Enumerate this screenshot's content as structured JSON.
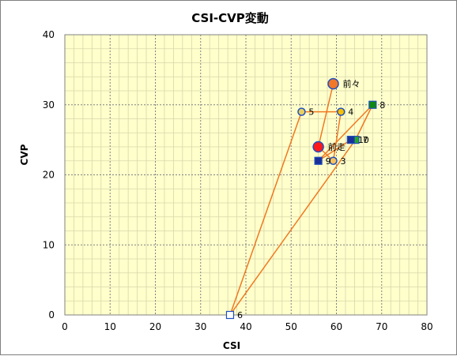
{
  "chart_data": {
    "type": "scatter",
    "title": "CSI-CVP変動",
    "xlabel": "CSI",
    "ylabel": "CVP",
    "xlim": [
      0,
      80
    ],
    "ylim": [
      0,
      40
    ],
    "x_ticks": [
      "0",
      "10",
      "20",
      "30",
      "40",
      "50",
      "60",
      "70",
      "80"
    ],
    "y_ticks": [
      "0",
      "10",
      "20",
      "30",
      "40"
    ],
    "grid": true,
    "colors": {
      "plot_background": "#ffffcc",
      "major_grid": "#808080",
      "minor_grid": "#d6d6aa",
      "connector": "#f07820"
    },
    "points": [
      {
        "label": "前々",
        "x": 59.3,
        "y": 33,
        "marker": "circle",
        "size": "large",
        "fill": "#f07828",
        "stroke": "#1f4fbf"
      },
      {
        "label": "前走",
        "x": 56,
        "y": 24,
        "marker": "circle",
        "size": "large",
        "fill": "#ff1a1a",
        "stroke": "#1f4fbf"
      },
      {
        "label": "3",
        "x": 59.3,
        "y": 22,
        "marker": "circle",
        "size": "small",
        "fill": "#f5c060",
        "stroke": "#1f4fbf"
      },
      {
        "label": "4",
        "x": 61,
        "y": 29,
        "marker": "circle",
        "size": "small",
        "fill": "#f5c000",
        "stroke": "#1f4fbf"
      },
      {
        "label": "5",
        "x": 52.3,
        "y": 29,
        "marker": "circle",
        "size": "small",
        "fill": "#e6d060",
        "stroke": "#1f4fbf"
      },
      {
        "label": "6",
        "x": 36.5,
        "y": 0,
        "marker": "square",
        "size": "small",
        "fill": "#ffffff",
        "stroke": "#1f4fbf"
      },
      {
        "label": "7",
        "x": 64.2,
        "y": 25,
        "marker": "square",
        "size": "small",
        "fill": "#22aa22",
        "stroke": "#1f4fbf"
      },
      {
        "label": "8",
        "x": 68,
        "y": 30,
        "marker": "square",
        "size": "small",
        "fill": "#118811",
        "stroke": "#1f4fbf"
      },
      {
        "label": "9",
        "x": 56,
        "y": 22,
        "marker": "square",
        "size": "small",
        "fill": "#1a2f9a",
        "stroke": "#1f4fbf"
      },
      {
        "label": "10",
        "x": 63.2,
        "y": 25,
        "marker": "square",
        "size": "small",
        "fill": "#1a2f9a",
        "stroke": "#1f4fbf"
      }
    ],
    "path_order": [
      "10",
      "9",
      "8",
      "7",
      "6",
      "5",
      "4",
      "3",
      "前走",
      "前々"
    ]
  }
}
